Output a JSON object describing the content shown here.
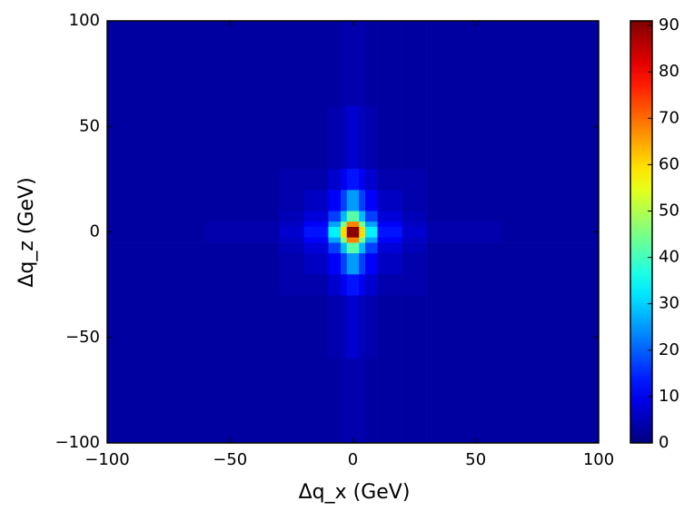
{
  "chart_data": {
    "type": "histogram2d",
    "xlabel": "Δq_x  (GeV)",
    "ylabel": "Δq_z  (GeV)",
    "xbins": [
      -100,
      -60,
      -30,
      -20,
      -10,
      -5,
      -2.5,
      0,
      2.5,
      5,
      10,
      20,
      30,
      60,
      100
    ],
    "ybins": [
      -100,
      -60,
      -30,
      -20,
      -10,
      -5,
      -2.5,
      0,
      2.5,
      5,
      10,
      20,
      30,
      60,
      100
    ],
    "counts": [
      [
        3,
        3,
        3,
        3,
        3,
        4,
        4,
        4,
        4,
        3,
        3,
        3,
        3,
        3
      ],
      [
        3,
        3,
        3,
        3,
        4,
        5,
        7,
        7,
        5,
        4,
        3,
        3,
        3,
        3
      ],
      [
        3,
        3,
        4,
        4,
        7,
        10,
        13,
        13,
        10,
        7,
        4,
        4,
        3,
        3
      ],
      [
        3,
        3,
        4,
        6,
        11,
        17,
        25,
        25,
        17,
        11,
        6,
        4,
        3,
        3
      ],
      [
        3,
        3,
        5,
        8,
        17,
        28,
        42,
        42,
        28,
        17,
        8,
        5,
        3,
        3
      ],
      [
        3,
        4,
        6,
        11,
        26,
        45,
        68,
        68,
        45,
        26,
        11,
        6,
        4,
        3
      ],
      [
        3,
        4,
        7,
        13,
        33,
        60,
        90,
        90,
        60,
        33,
        13,
        7,
        4,
        3
      ],
      [
        3,
        4,
        7,
        13,
        33,
        60,
        90,
        90,
        60,
        33,
        13,
        7,
        4,
        3
      ],
      [
        3,
        4,
        6,
        11,
        26,
        45,
        68,
        68,
        45,
        26,
        11,
        6,
        4,
        3
      ],
      [
        3,
        3,
        5,
        8,
        17,
        28,
        42,
        42,
        28,
        17,
        8,
        5,
        3,
        3
      ],
      [
        3,
        3,
        4,
        6,
        11,
        17,
        25,
        25,
        17,
        11,
        6,
        4,
        3,
        3
      ],
      [
        3,
        3,
        4,
        4,
        7,
        10,
        13,
        13,
        10,
        7,
        4,
        4,
        3,
        3
      ],
      [
        3,
        3,
        3,
        3,
        4,
        5,
        7,
        7,
        5,
        4,
        3,
        3,
        3,
        3
      ],
      [
        3,
        3,
        3,
        3,
        3,
        4,
        4,
        4,
        4,
        3,
        3,
        3,
        3,
        3
      ]
    ],
    "colormap": "jet",
    "xlim": [
      -100,
      100
    ],
    "xticks": [
      {
        "value": -100,
        "label": "−100"
      },
      {
        "value": -50,
        "label": "−50"
      },
      0,
      50,
      100
    ],
    "ylim": [
      -100,
      100
    ],
    "yticks": [
      {
        "value": -100,
        "label": "−100"
      },
      {
        "value": -50,
        "label": "−50"
      },
      0,
      50,
      100
    ],
    "clim": [
      0,
      91
    ],
    "cticks": [
      0,
      10,
      20,
      30,
      40,
      50,
      60,
      70,
      80,
      90
    ]
  }
}
